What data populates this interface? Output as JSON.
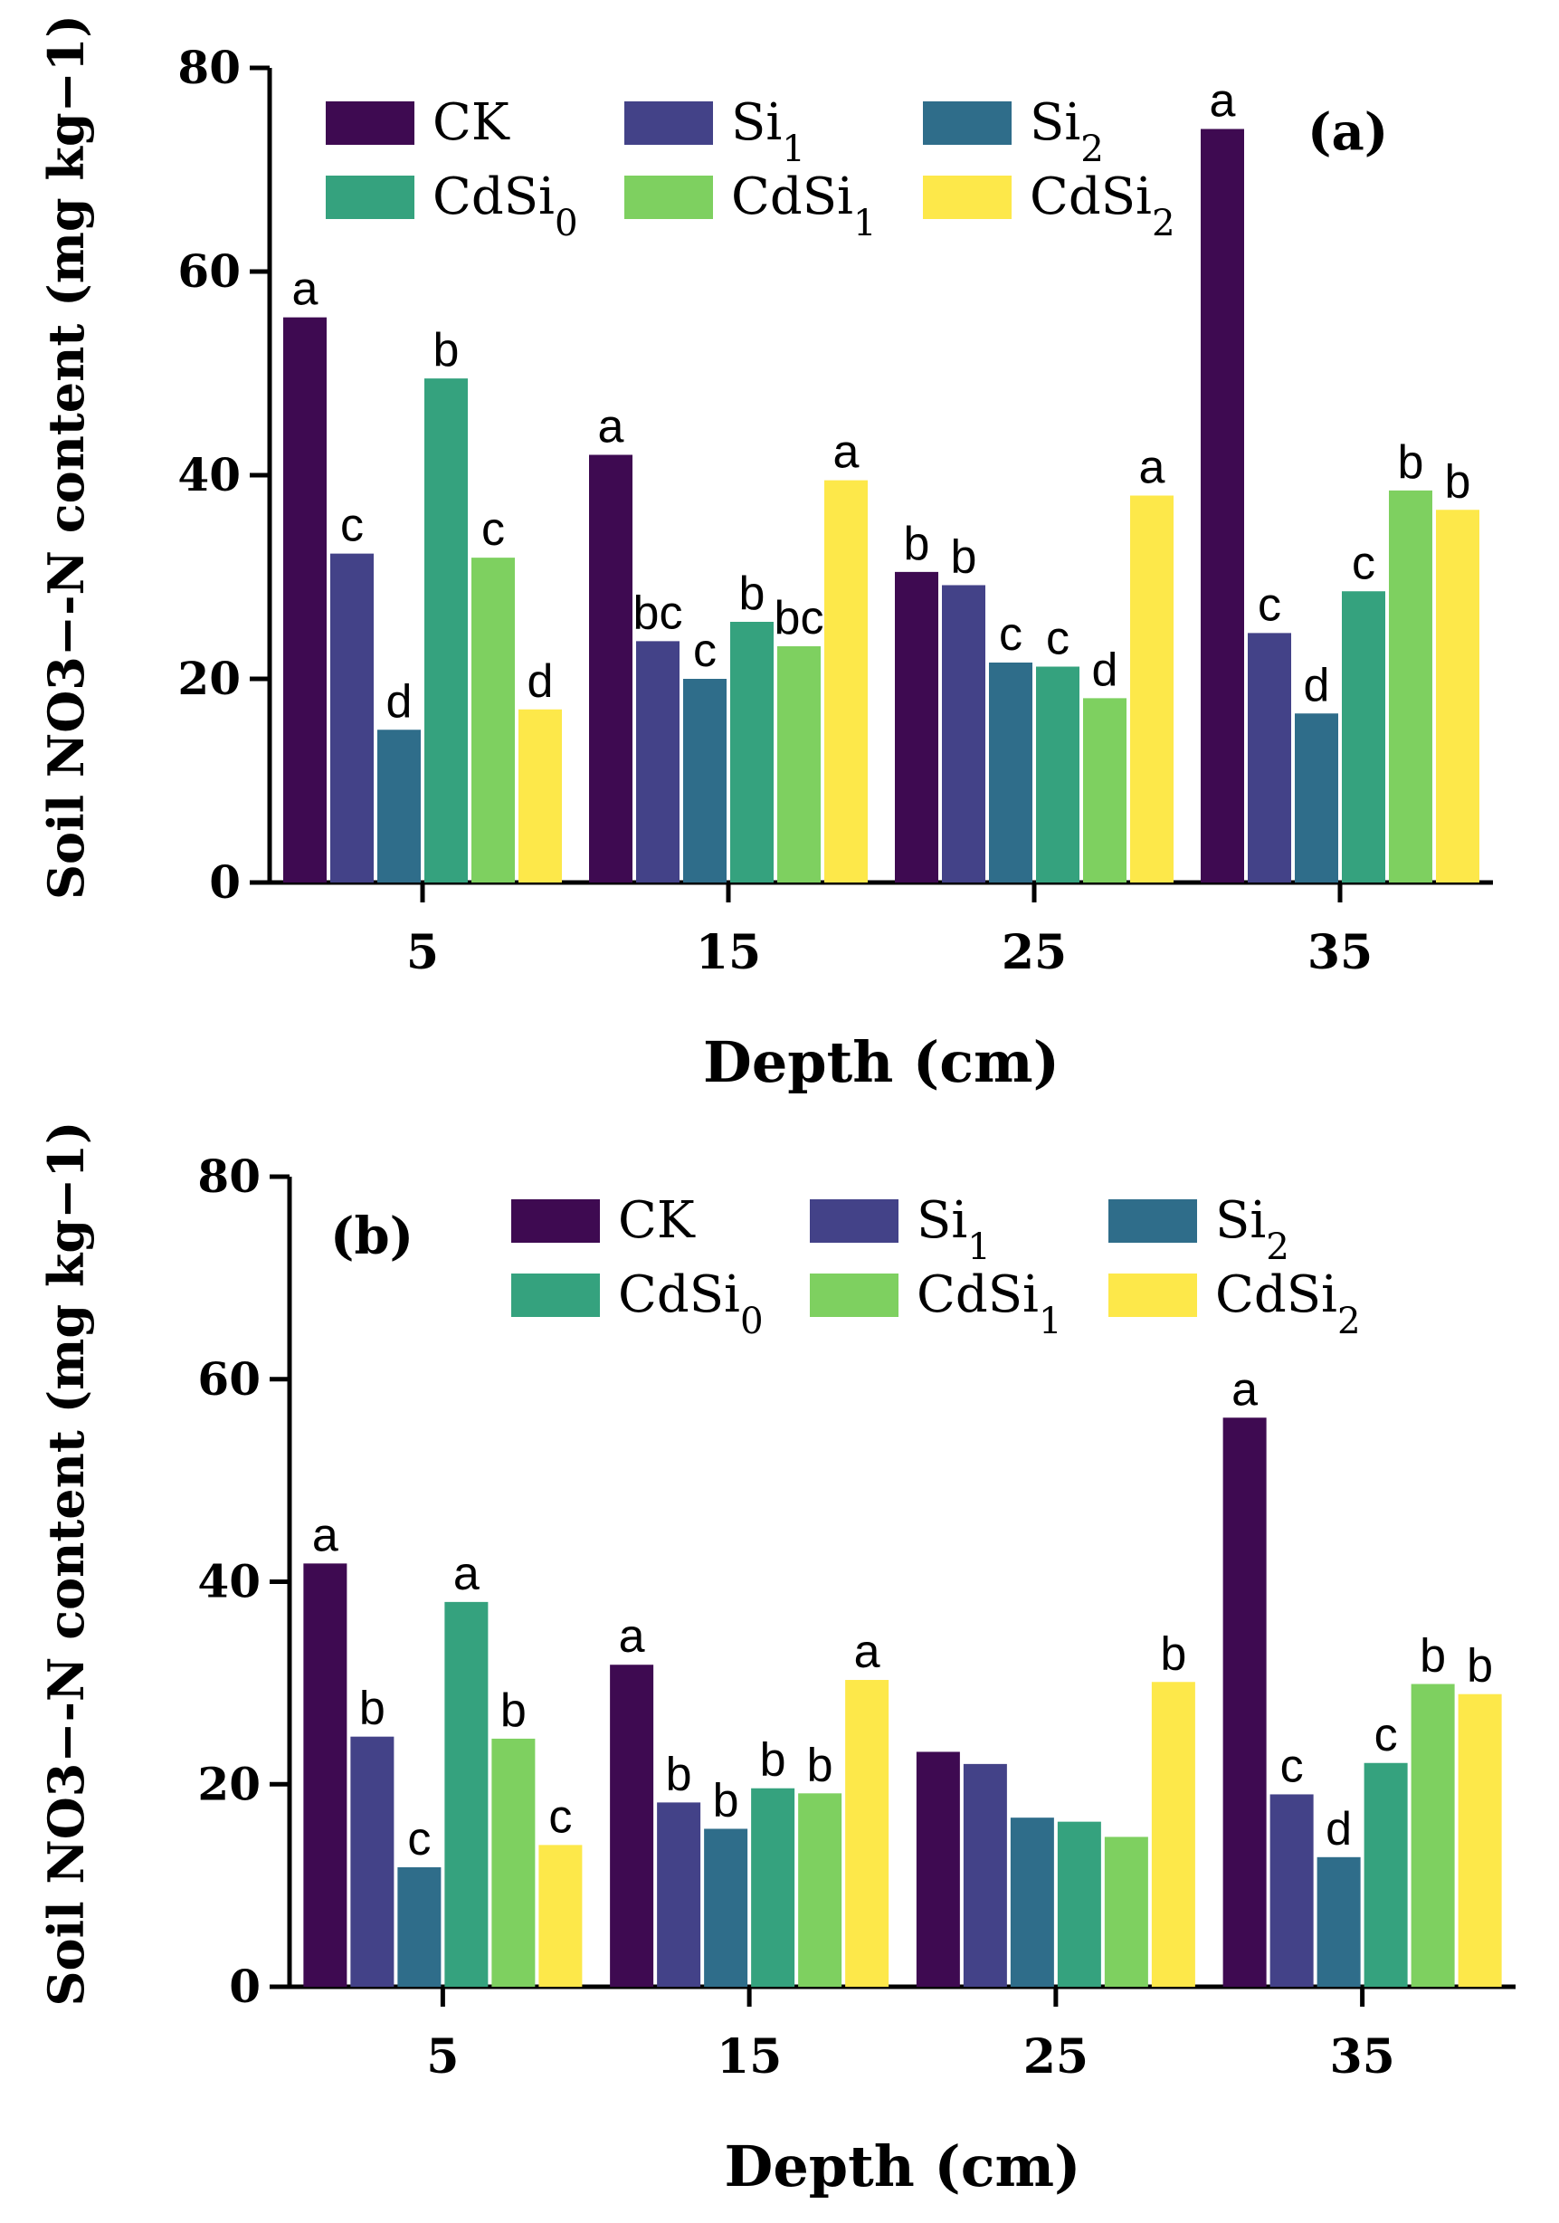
{
  "chart_data": [
    {
      "type": "bar",
      "panel_label": "(a)",
      "title": "",
      "xlabel": "Depth (cm)",
      "ylabel": "Soil NO3−-N content (mg kg−1)",
      "ylim": [
        0,
        80
      ],
      "yticks": [
        "0",
        "20",
        "40",
        "60",
        "80"
      ],
      "categories": [
        "5",
        "15",
        "25",
        "35"
      ],
      "legend_position": "top",
      "series": [
        {
          "name": "CK",
          "color": "#3e0a51",
          "values": [
            55.5,
            42.0,
            30.5,
            74.0
          ],
          "labels": [
            "a",
            "a",
            "b",
            "a"
          ]
        },
        {
          "name": "Si1",
          "color": "#434288",
          "values": [
            32.3,
            23.7,
            29.2,
            24.5
          ],
          "labels": [
            "c",
            "bc",
            "b",
            "c"
          ]
        },
        {
          "name": "Si2",
          "color": "#2f6d8a",
          "values": [
            15.0,
            20.0,
            21.6,
            16.6
          ],
          "labels": [
            "d",
            "c",
            "c",
            "d"
          ]
        },
        {
          "name": "CdSi0",
          "color": "#35a27e",
          "values": [
            49.5,
            25.6,
            21.2,
            28.6
          ],
          "labels": [
            "b",
            "b",
            "c",
            "c"
          ]
        },
        {
          "name": "CdSi1",
          "color": "#7ed060",
          "values": [
            31.9,
            23.2,
            18.1,
            38.5
          ],
          "labels": [
            "c",
            "bc",
            "d",
            "b"
          ]
        },
        {
          "name": "CdSi2",
          "color": "#fde84a",
          "values": [
            17.0,
            39.5,
            38.0,
            36.6
          ],
          "labels": [
            "d",
            "a",
            "a",
            "b"
          ]
        }
      ]
    },
    {
      "type": "bar",
      "panel_label": "(b)",
      "title": "",
      "xlabel": "Depth (cm)",
      "ylabel": "Soil NO3−-N content (mg kg−1)",
      "ylim": [
        0,
        80
      ],
      "yticks": [
        "0",
        "20",
        "40",
        "60",
        "80"
      ],
      "categories": [
        "5",
        "15",
        "25",
        "35"
      ],
      "legend_position": "top",
      "series": [
        {
          "name": "CK",
          "color": "#3e0a51",
          "values": [
            41.8,
            31.8,
            23.2,
            56.2
          ],
          "labels": [
            "a",
            "a",
            "",
            "a"
          ]
        },
        {
          "name": "Si1",
          "color": "#434288",
          "values": [
            24.7,
            18.2,
            22.0,
            19.0
          ],
          "labels": [
            "b",
            "b",
            "",
            "c"
          ]
        },
        {
          "name": "Si2",
          "color": "#2f6d8a",
          "values": [
            11.8,
            15.6,
            16.7,
            12.8
          ],
          "labels": [
            "c",
            "b",
            "",
            "d"
          ]
        },
        {
          "name": "CdSi0",
          "color": "#35a27e",
          "values": [
            38.0,
            19.6,
            16.3,
            22.1
          ],
          "labels": [
            "a",
            "b",
            "",
            "c"
          ]
        },
        {
          "name": "CdSi1",
          "color": "#7ed060",
          "values": [
            24.5,
            19.1,
            14.8,
            29.9
          ],
          "labels": [
            "b",
            "b",
            "",
            "b"
          ]
        },
        {
          "name": "CdSi2",
          "color": "#fde84a",
          "values": [
            14.0,
            30.3,
            30.1,
            28.9
          ],
          "labels": [
            "c",
            "a",
            "b",
            "b"
          ]
        }
      ]
    }
  ]
}
